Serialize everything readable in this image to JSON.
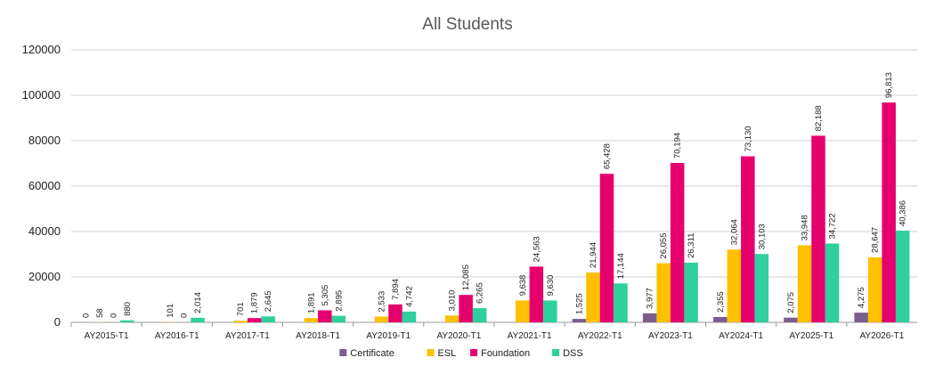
{
  "chart_data": {
    "type": "bar",
    "title": "All Students",
    "xlabel": "",
    "ylabel": "",
    "ylim": [
      0,
      120000
    ],
    "yticks": [
      0,
      20000,
      40000,
      60000,
      80000,
      100000,
      120000
    ],
    "ytick_labels": [
      "0",
      "20000",
      "40000",
      "60000",
      "80000",
      "100000",
      "120000"
    ],
    "grid": true,
    "legend_position": "bottom",
    "categories": [
      "AY2015-T1",
      "AY2016-T1",
      "AY2017-T1",
      "AY2018-T1",
      "AY2019-T1",
      "AY2020-T1",
      "AY2021-T1",
      "AY2022-T1",
      "AY2023-T1",
      "AY2024-T1",
      "AY2025-T1",
      "AY2026-T1"
    ],
    "series": [
      {
        "name": "Certificate",
        "color": "#7B5E8F",
        "values": [
          0,
          null,
          null,
          null,
          null,
          null,
          null,
          1525,
          3977,
          2355,
          2075,
          4275
        ],
        "labels": [
          "0",
          "",
          "",
          "",
          "",
          "",
          "",
          "1,525",
          "3,977",
          "2,355",
          "2,075",
          "4,275"
        ]
      },
      {
        "name": "ESL",
        "color": "#FFC000",
        "values": [
          58,
          101,
          701,
          1891,
          2533,
          3010,
          9638,
          21944,
          26055,
          32064,
          33948,
          28647
        ],
        "labels": [
          "58",
          "101",
          "701",
          "1,891",
          "2,533",
          "3,010",
          "9,638",
          "21,944",
          "26,055",
          "32,064",
          "33,948",
          "28,647"
        ]
      },
      {
        "name": "Foundation",
        "color": "#E6006E",
        "values": [
          0,
          0,
          1879,
          5305,
          7894,
          12085,
          24563,
          65428,
          70194,
          73130,
          82188,
          96813
        ],
        "labels": [
          "0",
          "0",
          "1,879",
          "5,305",
          "7,894",
          "12,085",
          "24,563",
          "65,428",
          "70,194",
          "73,130",
          "82,188",
          "96,813"
        ]
      },
      {
        "name": "DSS",
        "color": "#2FCF9E",
        "values": [
          880,
          2014,
          2645,
          2895,
          4742,
          6265,
          9630,
          17144,
          26311,
          30103,
          34722,
          40386
        ],
        "labels": [
          "880",
          "2,014",
          "2,645",
          "2,895",
          "4,742",
          "6,265",
          "9,630",
          "17,144",
          "26,311",
          "30,103",
          "34,722",
          "40,386"
        ]
      }
    ]
  }
}
